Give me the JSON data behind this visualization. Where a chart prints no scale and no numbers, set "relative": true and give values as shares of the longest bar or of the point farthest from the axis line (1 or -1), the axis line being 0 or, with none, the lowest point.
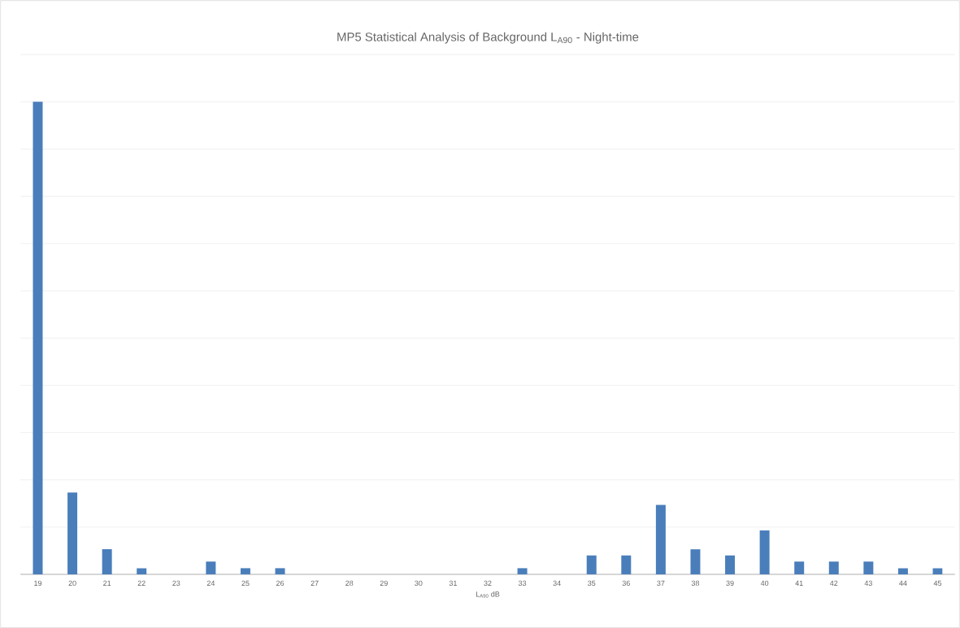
{
  "chart_data": {
    "type": "bar",
    "title": "MP5 Statistical Analysis of Background L$_{A90}$ - Night-time",
    "xlabel": "L$_{A90}$ dB",
    "categories": [
      "19",
      "20",
      "21",
      "22",
      "23",
      "24",
      "25",
      "26",
      "27",
      "28",
      "29",
      "30",
      "31",
      "32",
      "33",
      "34",
      "35",
      "36",
      "37",
      "38",
      "39",
      "40",
      "41",
      "42",
      "43",
      "44",
      "45"
    ],
    "values": [
      1,
      0.173,
      0.053,
      0.013,
      0,
      0.027,
      0.013,
      0.013,
      0,
      0,
      0,
      0,
      0,
      0,
      0.013,
      0,
      0.04,
      0.04,
      0.147,
      0.053,
      0.04,
      0.093,
      0.027,
      0.027,
      0.027,
      0.013,
      0.013
    ],
    "color": "#4a7ebb",
    "relative": true,
    "grid": "y"
  }
}
